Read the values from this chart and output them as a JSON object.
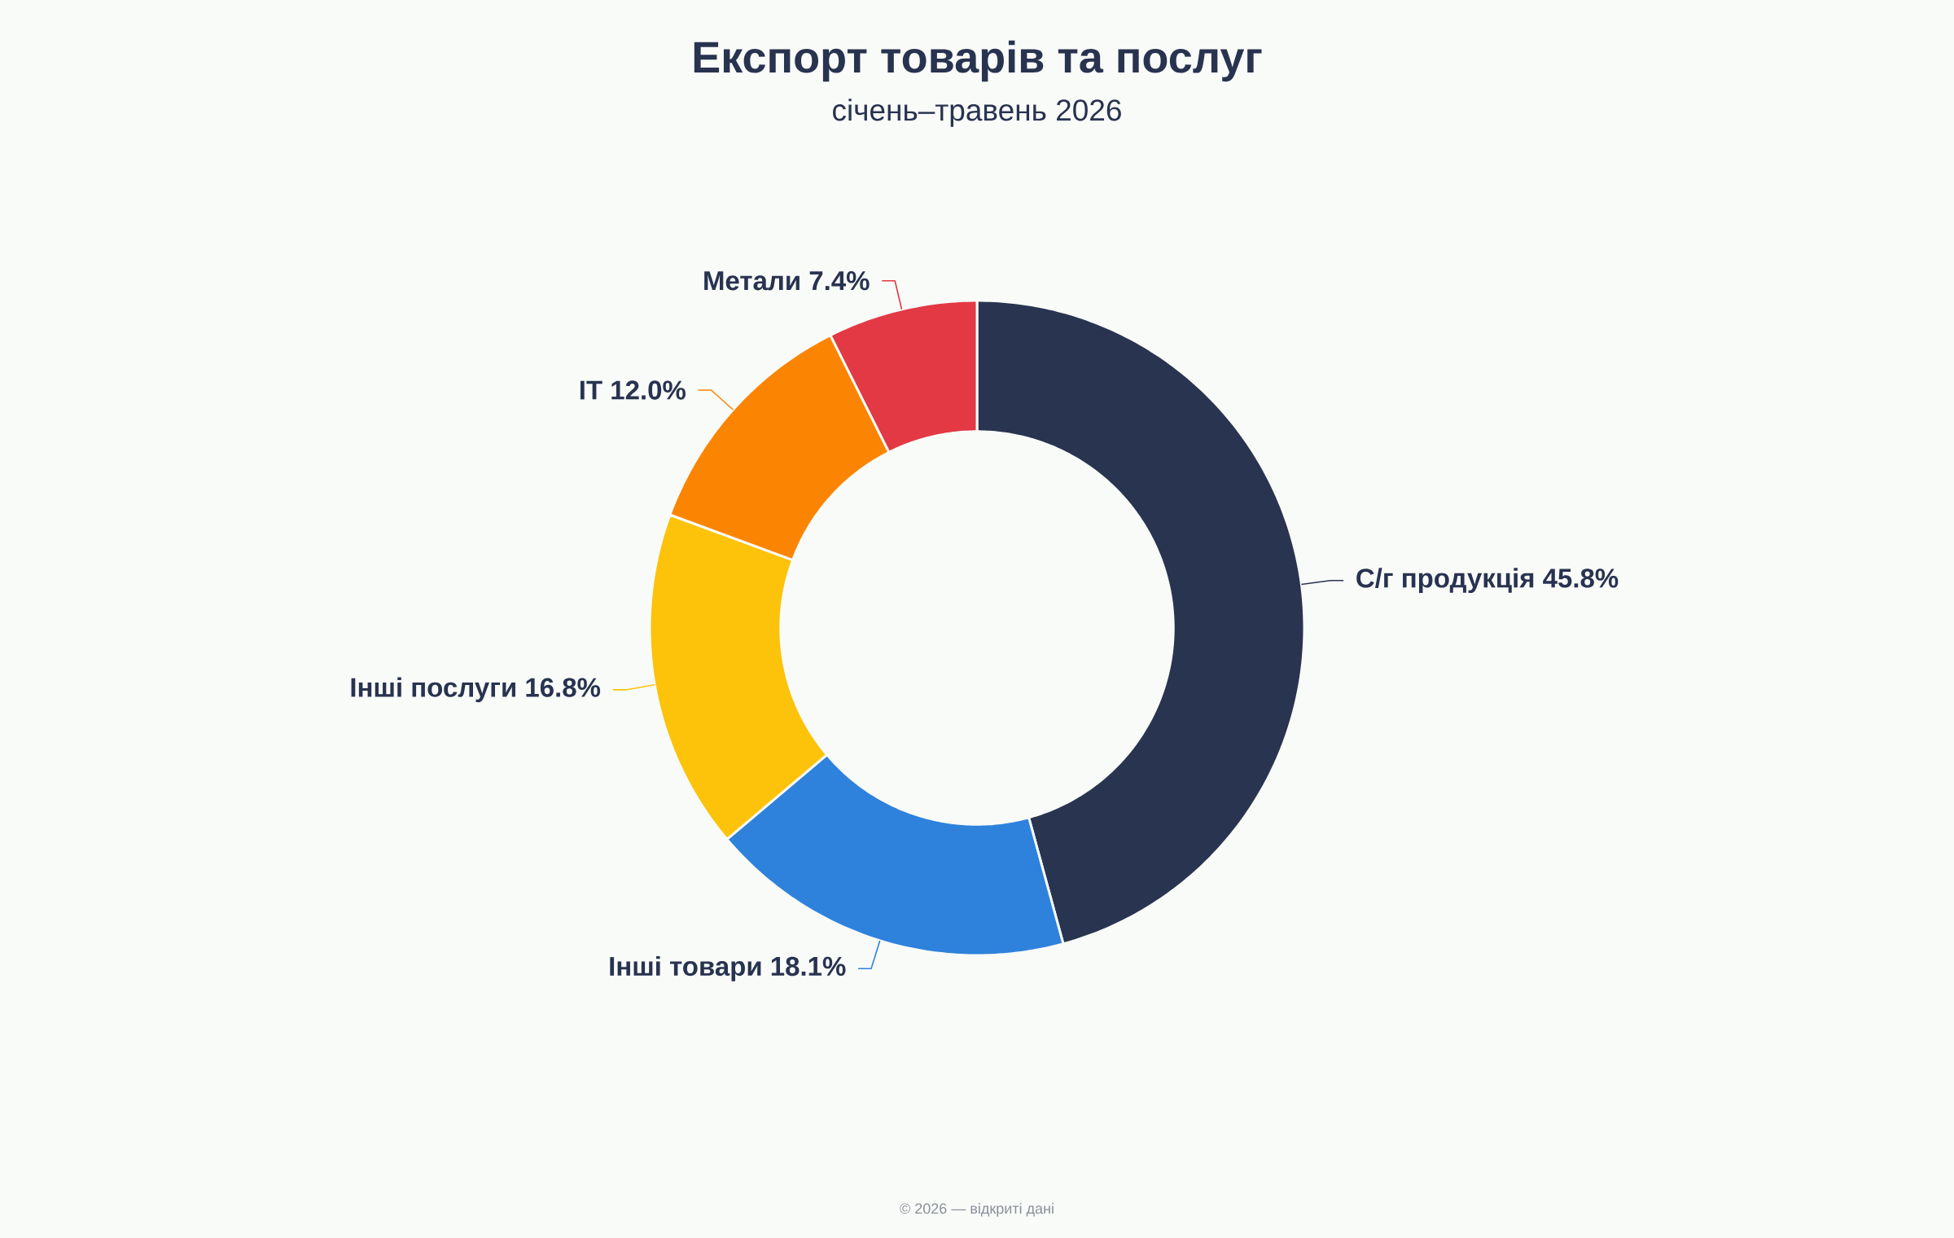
{
  "chart_data": {
    "type": "donut",
    "title": "Експорт товарів та послуг",
    "subtitle": "січень–травень 2026",
    "categories": [
      "С/г продукція",
      "Інші товари",
      "Інші послуги",
      "IT",
      "Метали"
    ],
    "values": [
      45.8,
      18.1,
      16.8,
      12.0,
      7.4
    ],
    "colors": [
      "#293450",
      "#2e82dc",
      "#fcc30a",
      "#fb8502",
      "#e33944"
    ],
    "value_labels": [
      "45.8%",
      "18.1%",
      "16.8%",
      "12.0%",
      "7.4%"
    ],
    "annotations": [
      "© 2026 — відкриті дані"
    ]
  }
}
